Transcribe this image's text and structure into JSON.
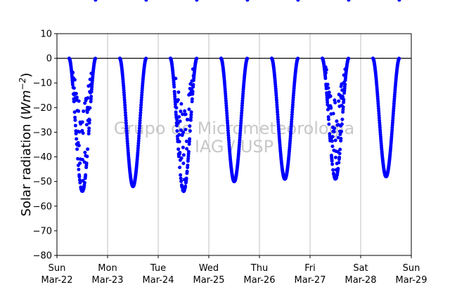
{
  "chart_data": {
    "type": "scatter",
    "title": "",
    "ylabel": "Solar radiation (Wm^-2)",
    "ylabel_parts": {
      "main": "Solar radiation (",
      "var": "Wm",
      "sup": "−2",
      "end": ")"
    },
    "ylim": [
      -80,
      10
    ],
    "yticks": [
      10,
      0,
      -10,
      -20,
      -30,
      -40,
      -50,
      -60,
      -70,
      -80
    ],
    "yticklabels": [
      "10",
      "0",
      "−10",
      "−20",
      "−30",
      "−40",
      "−50",
      "−60",
      "−70",
      "−80"
    ],
    "xlim": [
      "2020-03-22",
      "2020-03-29"
    ],
    "xticks": [
      {
        "day": 0,
        "line1": "Sun",
        "line2": "Mar-22"
      },
      {
        "day": 1,
        "line1": "Mon",
        "line2": "Mar-23"
      },
      {
        "day": 2,
        "line1": "Tue",
        "line2": "Mar-24"
      },
      {
        "day": 3,
        "line1": "Wed",
        "line2": "Mar-25"
      },
      {
        "day": 4,
        "line1": "Thu",
        "line2": "Mar-26"
      },
      {
        "day": 5,
        "line1": "Fri",
        "line2": "Mar-27"
      },
      {
        "day": 6,
        "line1": "Sat",
        "line2": "Mar-28"
      },
      {
        "day": 7,
        "line1": "Sun",
        "line2": "Mar-29"
      }
    ],
    "grid": "vertical",
    "zero_line": 0,
    "marker_color": "#0000ff",
    "watermark": [
      "Grupo de Micrometeorologia",
      "IAG / USP"
    ],
    "series": [
      {
        "days": [
          {
            "date": "Mar-22",
            "start_hour": 5.8,
            "end_hour": 18.3,
            "min": -54,
            "noisy": true
          },
          {
            "date": "Mar-23",
            "start_hour": 5.8,
            "end_hour": 18.3,
            "min": -52,
            "noisy": false
          },
          {
            "date": "Mar-24",
            "start_hour": 5.8,
            "end_hour": 18.3,
            "min": -54,
            "noisy": true
          },
          {
            "date": "Mar-25",
            "start_hour": 5.8,
            "end_hour": 18.3,
            "min": -50,
            "noisy": false
          },
          {
            "date": "Mar-26",
            "start_hour": 5.8,
            "end_hour": 18.3,
            "min": -49,
            "noisy": false
          },
          {
            "date": "Mar-27",
            "start_hour": 5.8,
            "end_hour": 18.3,
            "min": -49,
            "noisy": true
          },
          {
            "date": "Mar-28",
            "start_hour": 5.8,
            "end_hour": 18.3,
            "min": -48,
            "noisy": false
          }
        ]
      }
    ]
  }
}
